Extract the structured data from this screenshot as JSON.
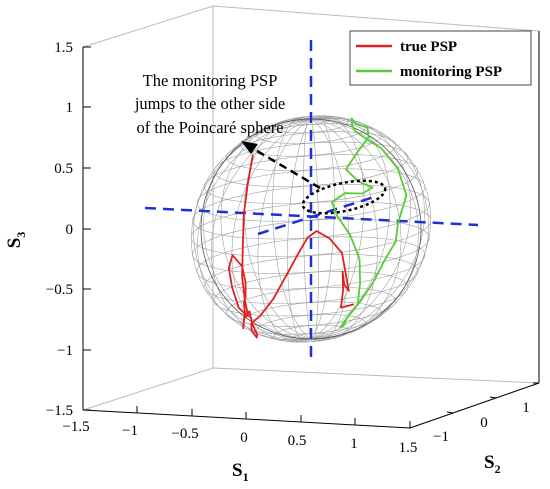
{
  "chart_data": {
    "type": "line",
    "projection": "3d",
    "xlabel": "S",
    "xlabel_sub": "1",
    "ylabel": "S",
    "ylabel_sub": "2",
    "zlabel": "S",
    "zlabel_sub": "3",
    "xlim": [
      -1.5,
      1.5
    ],
    "ylim": [
      -1.5,
      1.5
    ],
    "zlim": [
      -1.5,
      1.5
    ],
    "x_ticks": [
      "−1.5",
      "−1",
      "−0.5",
      "0",
      "0.5",
      "1",
      "1.5"
    ],
    "y_ticks": [
      "−1",
      "0",
      "1"
    ],
    "z_ticks": [
      "−1.5",
      "−1",
      "−0.5",
      "0",
      "0.5",
      "1",
      "1.5"
    ],
    "grid": "wireframe unit sphere",
    "legend_position": "top-right",
    "annotation": [
      "The monitoring PSP",
      "jumps to the other side",
      "of the Poincaré sphere"
    ],
    "colors": {
      "true": "#e02020",
      "monitoring": "#55cc33",
      "axes": "#1f2fd6",
      "sphere": "#9a9a9a"
    },
    "series": [
      {
        "name": "true PSP",
        "points": [
          [
            -0.82,
            0.2,
            0.55
          ],
          [
            -0.86,
            0.18,
            0.28
          ],
          [
            -0.85,
            0.12,
            0.02
          ],
          [
            -0.8,
            0.05,
            -0.25
          ],
          [
            -0.72,
            -0.05,
            -0.5
          ],
          [
            -0.6,
            -0.15,
            -0.68
          ],
          [
            -0.52,
            -0.2,
            -0.8
          ],
          [
            -0.58,
            -0.25,
            -0.72
          ],
          [
            -0.68,
            -0.22,
            -0.55
          ],
          [
            -0.78,
            -0.15,
            -0.4
          ],
          [
            -0.8,
            -0.08,
            -0.3
          ],
          [
            -0.72,
            -0.05,
            -0.4
          ],
          [
            -0.62,
            -0.12,
            -0.52
          ],
          [
            -0.55,
            -0.2,
            -0.62
          ],
          [
            -0.48,
            -0.3,
            -0.65
          ],
          [
            -0.4,
            -0.38,
            -0.7
          ],
          [
            -0.35,
            -0.45,
            -0.78
          ],
          [
            -0.4,
            -0.4,
            -0.85
          ],
          [
            -0.48,
            -0.3,
            -0.8
          ],
          [
            -0.42,
            -0.3,
            -0.72
          ],
          [
            -0.3,
            -0.4,
            -0.8
          ],
          [
            -0.2,
            -0.45,
            -0.88
          ],
          [
            -0.25,
            -0.4,
            -0.92
          ],
          [
            -0.35,
            -0.35,
            -0.88
          ],
          [
            -0.4,
            -0.3,
            -0.83
          ],
          [
            -0.3,
            -0.3,
            -0.75
          ],
          [
            -0.2,
            -0.25,
            -0.6
          ],
          [
            -0.12,
            -0.18,
            -0.4
          ],
          [
            -0.05,
            -0.1,
            -0.2
          ],
          [
            0.05,
            -0.1,
            -0.05
          ],
          [
            0.15,
            -0.1,
            0.02
          ],
          [
            0.25,
            -0.05,
            -0.05
          ],
          [
            0.3,
            0.05,
            -0.2
          ],
          [
            0.25,
            0.15,
            -0.4
          ],
          [
            0.2,
            0.25,
            -0.6
          ],
          [
            0.28,
            0.1,
            -0.5
          ],
          [
            0.35,
            0.0,
            -0.35
          ],
          [
            0.4,
            -0.05,
            -0.5
          ],
          [
            0.42,
            -0.1,
            -0.65
          ],
          [
            0.3,
            0.2,
            -0.7
          ]
        ]
      },
      {
        "name": "monitoring PSP",
        "points": [
          [
            0.52,
            0.0,
            -0.62
          ],
          [
            0.5,
            0.05,
            -0.45
          ],
          [
            0.45,
            0.1,
            -0.25
          ],
          [
            0.35,
            0.1,
            -0.05
          ],
          [
            0.2,
            0.1,
            0.12
          ],
          [
            0.1,
            0.15,
            0.22
          ],
          [
            0.2,
            0.2,
            0.3
          ],
          [
            0.35,
            0.25,
            0.3
          ],
          [
            0.42,
            0.3,
            0.35
          ],
          [
            0.35,
            0.2,
            0.42
          ],
          [
            0.3,
            0.1,
            0.55
          ],
          [
            0.35,
            0.2,
            0.7
          ],
          [
            0.42,
            0.25,
            0.82
          ],
          [
            0.45,
            0.2,
            0.92
          ],
          [
            0.4,
            0.1,
            0.98
          ],
          [
            0.45,
            0.0,
            1.05
          ],
          [
            0.5,
            -0.05,
            1.0
          ],
          [
            0.45,
            0.05,
            0.92
          ],
          [
            0.52,
            0.1,
            0.85
          ],
          [
            0.6,
            0.2,
            0.75
          ],
          [
            0.7,
            0.3,
            0.55
          ],
          [
            0.75,
            0.35,
            0.3
          ],
          [
            0.7,
            0.3,
            0.05
          ],
          [
            0.72,
            0.25,
            -0.1
          ],
          [
            0.65,
            0.2,
            -0.25
          ],
          [
            0.6,
            0.1,
            -0.45
          ],
          [
            0.55,
            0.0,
            -0.6
          ],
          [
            0.45,
            -0.1,
            -0.78
          ],
          [
            0.5,
            -0.2,
            -0.8
          ],
          [
            0.62,
            -0.3,
            -0.75
          ],
          [
            0.7,
            -0.35,
            -0.68
          ]
        ]
      }
    ]
  }
}
